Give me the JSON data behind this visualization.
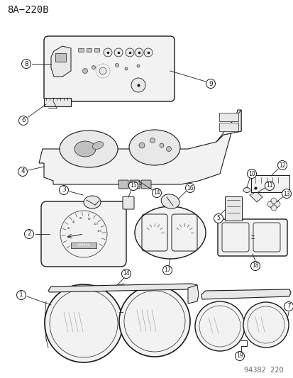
{
  "title": "8A−220B",
  "footer": "94382  220",
  "bg_color": "#ffffff",
  "line_color": "#1a1a1a",
  "gray_fill": "#e8e8e8",
  "light_gray": "#f2f2f2",
  "dark_gray": "#c0c0c0",
  "title_fontsize": 10,
  "footer_fontsize": 7,
  "callout_r": 6.5
}
